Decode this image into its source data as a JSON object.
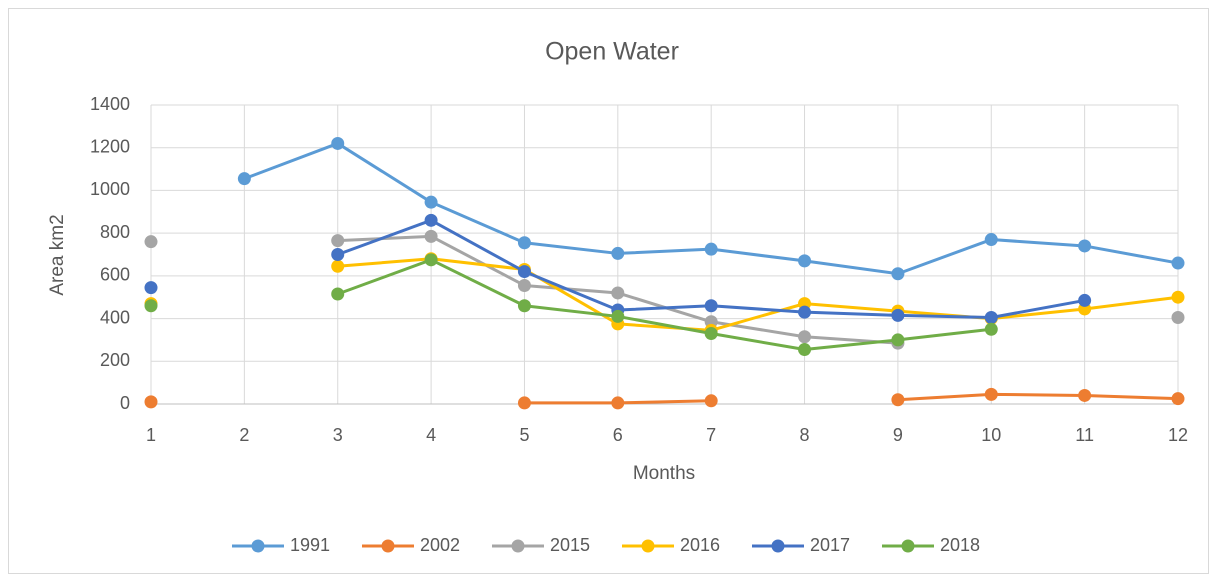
{
  "chart_data": {
    "type": "line",
    "title": "Open Water",
    "x_label": "Months",
    "y_label": "Area km2",
    "x": [
      1,
      2,
      3,
      4,
      5,
      6,
      7,
      8,
      9,
      10,
      11,
      12
    ],
    "xlim": [
      1,
      12
    ],
    "xticks": [
      1,
      2,
      3,
      4,
      5,
      6,
      7,
      8,
      9,
      10,
      11,
      12
    ],
    "ylim": [
      0,
      1400
    ],
    "yticks": [
      0,
      200,
      400,
      600,
      800,
      1000,
      1200,
      1400
    ],
    "grid": true,
    "legend": "bottom",
    "series": [
      {
        "name": "1991",
        "color": "#5b9bd5",
        "values": [
          null,
          1055,
          1220,
          945,
          755,
          705,
          725,
          670,
          610,
          770,
          740,
          660
        ]
      },
      {
        "name": "2002",
        "color": "#ed7d31",
        "values": [
          10,
          null,
          null,
          null,
          5,
          5,
          15,
          null,
          20,
          45,
          40,
          25
        ]
      },
      {
        "name": "2015",
        "color": "#a5a5a5",
        "values": [
          760,
          null,
          765,
          785,
          555,
          520,
          385,
          315,
          285,
          null,
          null,
          405
        ]
      },
      {
        "name": "2016",
        "color": "#ffc000",
        "values": [
          470,
          null,
          645,
          680,
          630,
          375,
          345,
          470,
          435,
          400,
          445,
          500
        ]
      },
      {
        "name": "2017",
        "color": "#4472c4",
        "values": [
          545,
          null,
          700,
          860,
          620,
          440,
          460,
          430,
          415,
          405,
          485,
          null
        ]
      },
      {
        "name": "2018",
        "color": "#70ad47",
        "values": [
          460,
          null,
          515,
          675,
          460,
          410,
          330,
          255,
          300,
          350,
          null,
          null
        ]
      }
    ]
  }
}
